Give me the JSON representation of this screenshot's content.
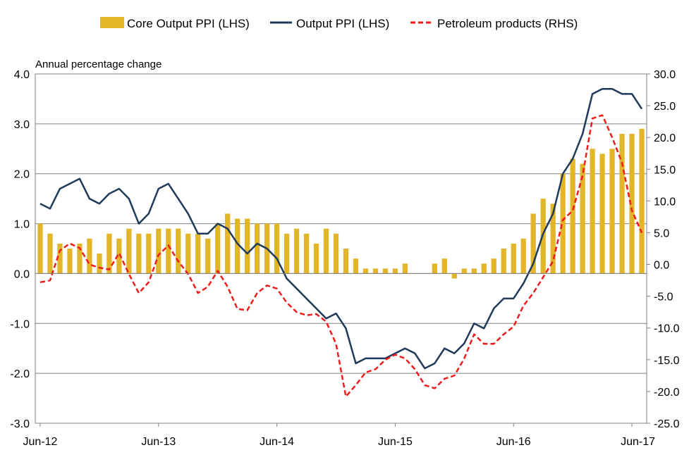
{
  "chart_data": {
    "type": "bar+line",
    "ylabel": "Annual percentage change",
    "x_tick_labels": [
      "Jun-12",
      "Jun-13",
      "Jun-14",
      "Jun-15",
      "Jun-16",
      "Jun-17"
    ],
    "left_axis": {
      "ylim": [
        -3.0,
        4.0
      ],
      "ticks": [
        "-3.0",
        "-2.0",
        "-1.0",
        "0.0",
        "1.0",
        "2.0",
        "3.0",
        "4.0"
      ]
    },
    "right_axis": {
      "ylim": [
        -25.0,
        30.0
      ],
      "ticks": [
        "-25.0",
        "-20.0",
        "-15.0",
        "-10.0",
        "-5.0",
        "0.0",
        "5.0",
        "10.0",
        "15.0",
        "20.0",
        "25.0",
        "30.0"
      ]
    },
    "grid": true,
    "legend_position": "top",
    "colors": {
      "core": "#e3b528",
      "output": "#1f3a5a",
      "petroleum": "#ee1c1c",
      "grid": "#808080"
    },
    "series": [
      {
        "name": "Core Output PPI (LHS)",
        "axis": "left",
        "type": "bar",
        "values": [
          1.0,
          0.8,
          0.6,
          0.5,
          0.6,
          0.7,
          0.4,
          0.8,
          0.7,
          0.9,
          0.8,
          0.8,
          0.9,
          0.9,
          0.9,
          0.8,
          0.8,
          0.7,
          1.0,
          1.2,
          1.1,
          1.1,
          1.0,
          1.0,
          1.0,
          0.8,
          0.9,
          0.8,
          0.6,
          0.9,
          0.8,
          0.5,
          0.3,
          0.1,
          0.1,
          0.1,
          0.1,
          0.2,
          0.0,
          0.0,
          0.2,
          0.3,
          -0.1,
          0.1,
          0.1,
          0.2,
          0.3,
          0.5,
          0.6,
          0.7,
          1.2,
          1.5,
          1.4,
          2.0,
          2.3,
          2.2,
          2.5,
          2.4,
          2.5,
          2.8,
          2.8,
          2.9
        ]
      },
      {
        "name": "Output PPI (LHS)",
        "axis": "left",
        "type": "line",
        "values": [
          1.4,
          1.3,
          1.7,
          1.8,
          1.9,
          1.5,
          1.4,
          1.6,
          1.7,
          1.5,
          1.0,
          1.2,
          1.7,
          1.8,
          1.5,
          1.2,
          0.8,
          0.8,
          1.0,
          0.9,
          0.6,
          0.4,
          0.6,
          0.5,
          0.3,
          -0.1,
          -0.3,
          -0.5,
          -0.7,
          -0.9,
          -0.8,
          -1.1,
          -1.8,
          -1.7,
          -1.7,
          -1.7,
          -1.6,
          -1.5,
          -1.6,
          -1.9,
          -1.8,
          -1.5,
          -1.6,
          -1.4,
          -1.0,
          -1.1,
          -0.7,
          -0.5,
          -0.5,
          -0.2,
          0.2,
          0.8,
          1.2,
          2.0,
          2.3,
          2.8,
          3.6,
          3.7,
          3.7,
          3.6,
          3.6,
          3.3
        ]
      },
      {
        "name": "Petroleum products (RHS)",
        "axis": "right",
        "type": "line",
        "values": [
          -2.8,
          -2.5,
          2.2,
          3.3,
          2.6,
          0.0,
          -0.5,
          -0.8,
          1.8,
          -1.5,
          -4.5,
          -2.8,
          1.5,
          3.0,
          0.5,
          -1.5,
          -4.5,
          -3.5,
          -1.0,
          -3.5,
          -7.0,
          -7.2,
          -4.5,
          -3.3,
          -3.8,
          -6.0,
          -7.5,
          -8.0,
          -7.8,
          -9.0,
          -12.5,
          -20.8,
          -19.0,
          -17.0,
          -16.5,
          -15.0,
          -14.2,
          -14.8,
          -16.5,
          -19.0,
          -19.5,
          -18.0,
          -17.5,
          -14.8,
          -11.0,
          -12.5,
          -12.5,
          -11.0,
          -9.8,
          -6.5,
          -4.5,
          -2.0,
          0.5,
          7.0,
          8.5,
          14.0,
          23.0,
          23.5,
          20.0,
          16.0,
          8.5,
          5.0
        ]
      }
    ]
  }
}
